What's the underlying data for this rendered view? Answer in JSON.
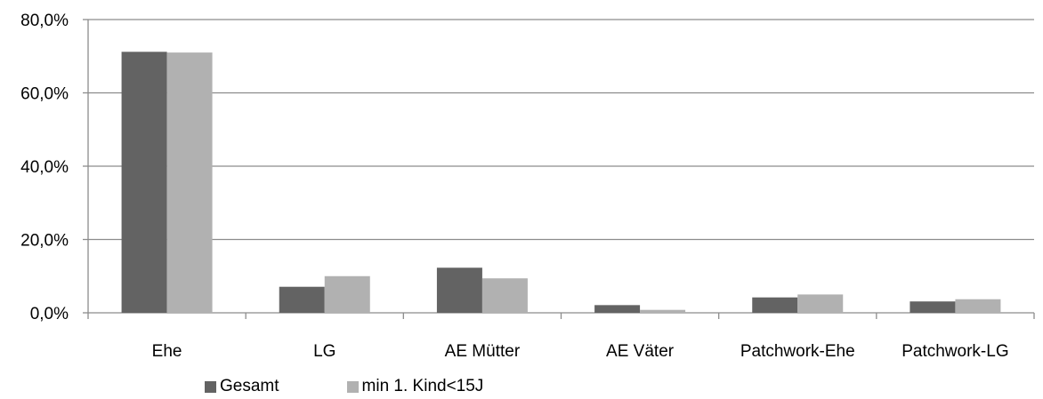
{
  "chart_data": {
    "type": "bar",
    "categories": [
      "Ehe",
      "LG",
      "AE Mütter",
      "AE Väter",
      "Patchwork-Ehe",
      "Patchwork-LG"
    ],
    "series": [
      {
        "name": "Gesamt",
        "color": "#636363",
        "values": [
          71.2,
          7.1,
          12.3,
          2.1,
          4.2,
          3.1
        ]
      },
      {
        "name": "min 1. Kind<15J",
        "color": "#b1b1b1",
        "values": [
          71.0,
          10.0,
          9.4,
          0.8,
          5.0,
          3.7
        ]
      }
    ],
    "yticks": [
      "0,0%",
      "20,0%",
      "40,0%",
      "60,0%",
      "80,0%"
    ],
    "ylim": [
      0,
      80
    ],
    "grid": true,
    "legend_position": "bottom",
    "title": "",
    "xlabel": "",
    "ylabel": ""
  }
}
